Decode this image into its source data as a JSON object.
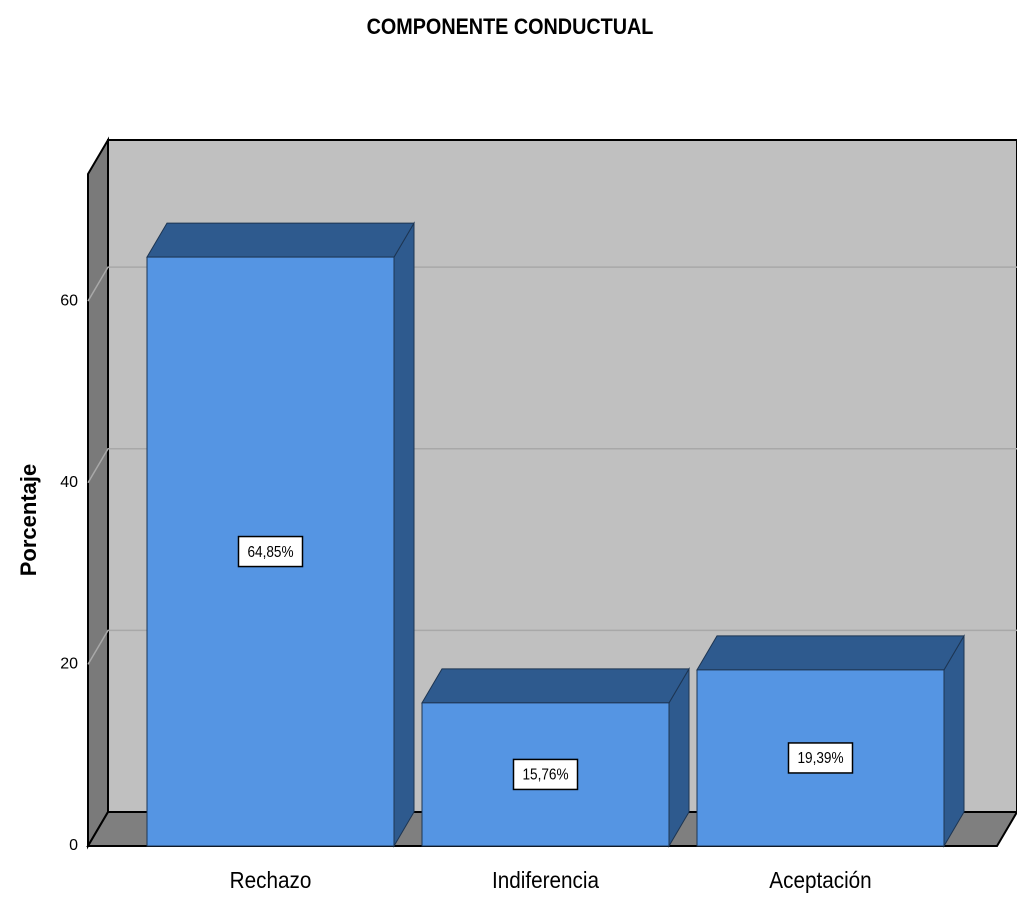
{
  "chart_data": {
    "type": "bar3d",
    "title": "COMPONENTE CONDUCTUAL",
    "ylabel": "Porcentaje",
    "categories": [
      "Rechazo",
      "Indiferencia",
      "Aceptación"
    ],
    "values": [
      64.85,
      15.76,
      19.39
    ],
    "value_labels": [
      "64,85%",
      "15,76%",
      "19,39%"
    ],
    "color": "#5595e3",
    "ylim": [
      0,
      74
    ],
    "yticks": [
      0,
      20,
      40,
      60
    ],
    "grid": true
  }
}
